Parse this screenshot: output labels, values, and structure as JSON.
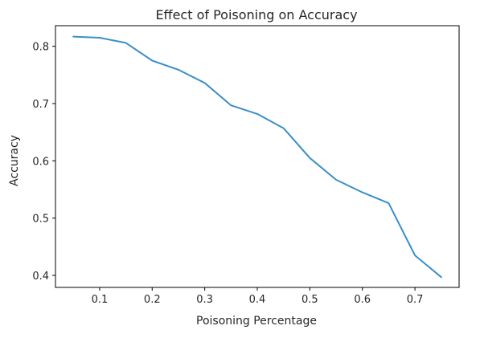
{
  "chart_data": {
    "type": "line",
    "title": "Effect of Poisoning on Accuracy",
    "xlabel": "Poisoning Percentage",
    "ylabel": "Accuracy",
    "xlim": [
      0.016,
      0.784
    ],
    "ylim": [
      0.379,
      0.836
    ],
    "xticks": [
      0.1,
      0.2,
      0.3,
      0.4,
      0.5,
      0.6,
      0.7
    ],
    "yticks": [
      0.4,
      0.5,
      0.6,
      0.7,
      0.8
    ],
    "x": [
      0.05,
      0.1,
      0.15,
      0.2,
      0.25,
      0.3,
      0.35,
      0.4,
      0.45,
      0.5,
      0.55,
      0.6,
      0.65,
      0.7,
      0.75
    ],
    "series": [
      {
        "values": [
          0.817,
          0.815,
          0.806,
          0.775,
          0.759,
          0.736,
          0.697,
          0.682,
          0.657,
          0.605,
          0.567,
          0.545,
          0.526,
          0.435,
          0.397
        ],
        "color": "#3a8fc8"
      }
    ],
    "grid": false,
    "legend": "none"
  }
}
